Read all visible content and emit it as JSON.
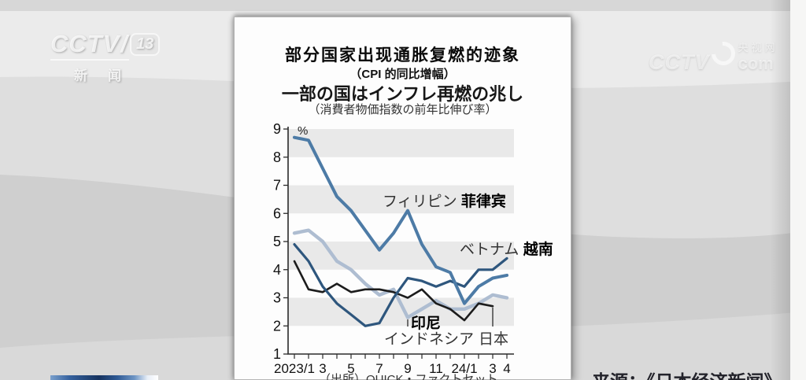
{
  "watermarks": {
    "cctv13": {
      "brand": "CCTV",
      "slash": "/",
      "number": "13",
      "subtitle": "新闻"
    },
    "cctvcom": {
      "brand": "CCTV",
      "cn": "央视网",
      "suffix": "com"
    }
  },
  "caption": {
    "source_credit": "来源：《日本经济新闻》"
  },
  "chart_data": {
    "type": "line",
    "title_zh": "部分国家出现通胀复燃的迹象",
    "subtitle_zh": "（CPI 的同比增幅）",
    "title_ja": "一部の国はインフレ再燃の兆し",
    "subtitle_ja": "（消費者物価指数の前年比伸び率）",
    "unit": "%",
    "source": "（出所）QUICK・ファクトセット",
    "ylim": [
      1,
      9
    ],
    "yticks": [
      9,
      8,
      7,
      6,
      5,
      4,
      3,
      2,
      1
    ],
    "shaded_bands": [
      [
        2,
        3
      ],
      [
        4,
        5
      ],
      [
        6,
        7
      ],
      [
        8,
        9
      ]
    ],
    "band_color": "#e9e9e9",
    "grid": false,
    "n_points": 16,
    "x_tick_labels": [
      "2023/1",
      "3",
      "5",
      "7",
      "9",
      "11",
      "24/1",
      "3",
      "4"
    ],
    "x_tick_positions": [
      1,
      3,
      5,
      7,
      9,
      11,
      13,
      15,
      16
    ],
    "series": [
      {
        "id": "philippines",
        "name_ja": "フィリピン",
        "name_zh": "菲律宾",
        "color": "#4d7ba6",
        "stroke_width": 4,
        "values": [
          8.7,
          8.6,
          7.6,
          6.6,
          6.1,
          5.4,
          4.7,
          5.3,
          6.1,
          4.9,
          4.1,
          3.9,
          2.8,
          3.4,
          3.7,
          3.8
        ]
      },
      {
        "id": "vietnam",
        "name_ja": "ベトナム",
        "name_zh": "越南",
        "color": "#2e567d",
        "stroke_width": 3.2,
        "values": [
          4.9,
          4.3,
          3.4,
          2.8,
          2.4,
          2.0,
          2.1,
          3.0,
          3.7,
          3.6,
          3.4,
          3.6,
          3.4,
          4.0,
          4.0,
          4.4
        ]
      },
      {
        "id": "indonesia",
        "name_ja": "インドネシア",
        "name_zh": "印尼",
        "color": "#aebdd1",
        "stroke_width": 4.4,
        "values": [
          5.3,
          5.4,
          5.0,
          4.3,
          4.0,
          3.5,
          3.1,
          3.3,
          2.3,
          2.6,
          2.9,
          2.6,
          2.6,
          2.8,
          3.1,
          3.0
        ]
      },
      {
        "id": "japan",
        "name_ja": "日本",
        "name_zh": "",
        "color": "#1c1c1c",
        "stroke_width": 2.6,
        "values": [
          4.3,
          3.3,
          3.2,
          3.5,
          3.2,
          3.3,
          3.3,
          3.2,
          3.0,
          3.3,
          2.8,
          2.6,
          2.2,
          2.8,
          2.7
        ]
      }
    ]
  }
}
